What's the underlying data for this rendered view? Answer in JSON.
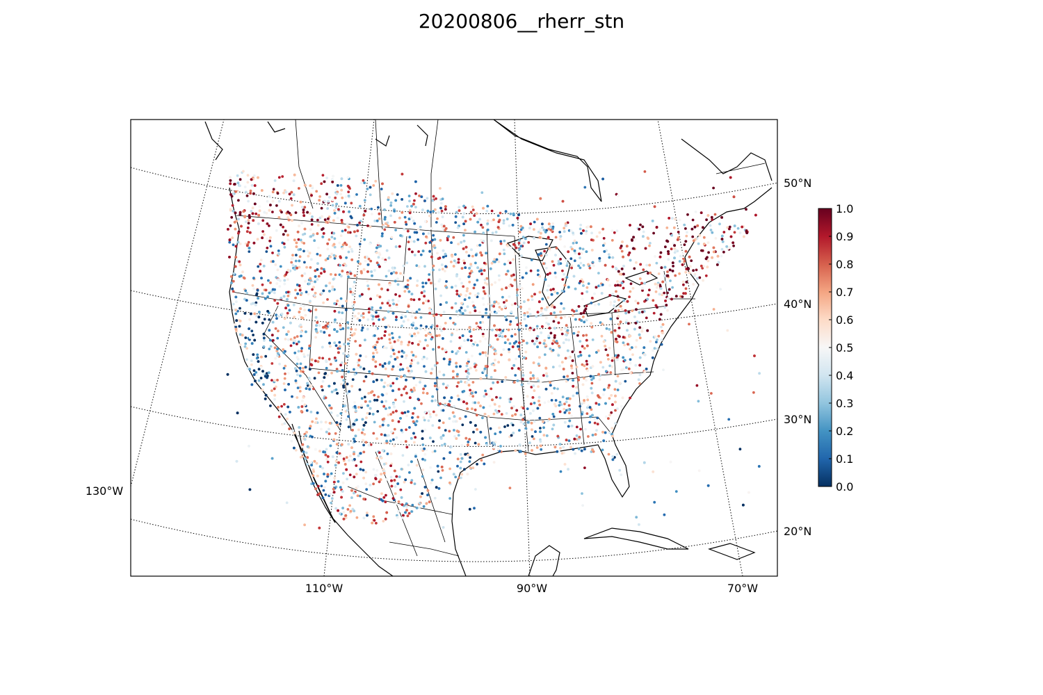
{
  "title": "20200806__rherr_stn",
  "map": {
    "projection": "lambert-conformal",
    "lon_labels": [
      "130°W",
      "110°W",
      "90°W",
      "70°W"
    ],
    "lat_labels": [
      "50°N",
      "40°N",
      "30°N",
      "20°N"
    ],
    "coastline_color": "#000000",
    "graticule_style": "dotted"
  },
  "colorbar": {
    "colormap": "RdBu_r",
    "min": 0.0,
    "max": 1.0,
    "ticks": [
      "0.0",
      "0.1",
      "0.2",
      "0.3",
      "0.4",
      "0.5",
      "0.6",
      "0.7",
      "0.8",
      "0.9",
      "1.0"
    ],
    "stops": [
      "#053061",
      "#2166ac",
      "#4393c3",
      "#92c5de",
      "#d1e5f0",
      "#f7f7f7",
      "#fddbc7",
      "#f4a582",
      "#d6604d",
      "#b2182b",
      "#67001f"
    ]
  },
  "chart_data": {
    "type": "scatter",
    "title": "20200806__rherr_stn",
    "value_range": [
      0.0,
      1.0
    ],
    "series": [
      {
        "values": "station points colored by value, dense over CONUS; high (red) clusters in Pacific Northwest, Northeast, Ohio Valley; low (blue) clusters along California coast, Gulf Coast, Florida"
      }
    ]
  }
}
